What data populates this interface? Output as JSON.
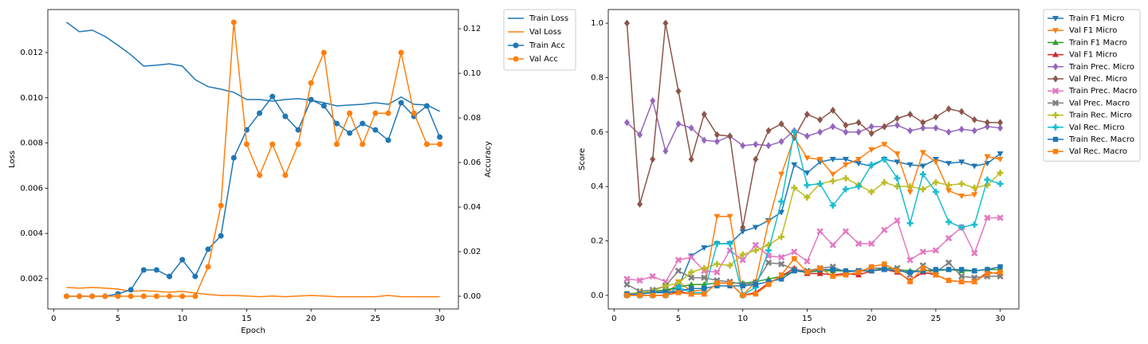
{
  "chart_data": [
    {
      "type": "line",
      "xlabel": "Epoch",
      "ylabel": "Loss",
      "y2label": "Accuracy",
      "legend": "outside",
      "x": [
        1,
        2,
        3,
        4,
        5,
        6,
        7,
        8,
        9,
        10,
        11,
        12,
        13,
        14,
        15,
        16,
        17,
        18,
        19,
        20,
        21,
        22,
        23,
        24,
        25,
        26,
        27,
        28,
        29,
        30
      ],
      "xlim": [
        -0.45,
        31.45
      ],
      "xticks": [
        0,
        5,
        10,
        15,
        20,
        25,
        30
      ],
      "ylim": [
        0.00066,
        0.0139
      ],
      "yticks": [
        0.002,
        0.004,
        0.006,
        0.008,
        {
          "value": 0.01,
          "label": "0.010"
        },
        {
          "value": 0.012,
          "label": "0.012"
        }
      ],
      "y2lim": [
        -0.0057,
        0.1286
      ],
      "y2ticks": [
        {
          "value": 0,
          "label": "0.00"
        },
        {
          "value": 0.02,
          "label": "0.02"
        },
        {
          "value": 0.04,
          "label": "0.04"
        },
        {
          "value": 0.06,
          "label": "0.06"
        },
        {
          "value": 0.08,
          "label": "0.08"
        },
        {
          "value": 0.1,
          "label": "0.10"
        },
        {
          "value": 0.12,
          "label": "0.12"
        }
      ],
      "series": [
        {
          "name": "Train Loss",
          "color": "#1f77b4",
          "marker": "none",
          "values": [
            0.01334,
            0.01292,
            0.01299,
            0.01271,
            0.01232,
            0.0119,
            0.0114,
            0.01144,
            0.0115,
            0.0114,
            0.0108,
            0.01049,
            0.01038,
            0.01024,
            0.00992,
            0.00992,
            0.00985,
            0.00992,
            0.00996,
            0.00989,
            0.00978,
            0.00964,
            0.00968,
            0.00971,
            0.00978,
            0.00971,
            0.01003,
            0.00971,
            0.00968,
            0.0094
          ]
        },
        {
          "name": "Val Loss",
          "color": "#ff7f0e",
          "marker": "none",
          "values": [
            0.00161,
            0.00158,
            0.00161,
            0.00158,
            0.00154,
            0.00144,
            0.00147,
            0.00144,
            0.0014,
            0.00144,
            0.00137,
            0.0013,
            0.00126,
            0.00126,
            0.00123,
            0.0012,
            0.00123,
            0.0012,
            0.00123,
            0.00126,
            0.00123,
            0.0012,
            0.0012,
            0.0012,
            0.0012,
            0.00126,
            0.0012,
            0.0012,
            0.0012,
            0.0012
          ]
        },
        {
          "name": "Train Acc",
          "color": "#1f77b4",
          "marker": "circle",
          "axis": "y2",
          "values": [
            0,
            0,
            0,
            0,
            0.0011,
            0.0029,
            0.0118,
            0.0118,
            0.0089,
            0.0164,
            0.0089,
            0.0211,
            0.0271,
            0.0621,
            0.0746,
            0.0821,
            0.0896,
            0.0807,
            0.0746,
            0.0882,
            0.0854,
            0.0775,
            0.0732,
            0.0775,
            0.0746,
            0.07,
            0.0868,
            0.0807,
            0.0854,
            0.0714
          ]
        },
        {
          "name": "Val Acc",
          "color": "#ff7f0e",
          "marker": "circle",
          "axis": "y2",
          "values": [
            0,
            0,
            0,
            0,
            0,
            0,
            0,
            0,
            0,
            0,
            0,
            0.0132,
            0.0407,
            0.1229,
            0.0682,
            0.0543,
            0.0682,
            0.0543,
            0.0682,
            0.0957,
            0.1093,
            0.0682,
            0.0821,
            0.0682,
            0.0821,
            0.0821,
            0.1093,
            0.0821,
            0.0682,
            0.0682
          ]
        }
      ]
    },
    {
      "type": "line",
      "xlabel": "Epoch",
      "ylabel": "Score",
      "legend": "outside",
      "x": [
        1,
        2,
        3,
        4,
        5,
        6,
        7,
        8,
        9,
        10,
        11,
        12,
        13,
        14,
        15,
        16,
        17,
        18,
        19,
        20,
        21,
        22,
        23,
        24,
        25,
        26,
        27,
        28,
        29,
        30
      ],
      "xlim": [
        -0.45,
        31.45
      ],
      "xticks": [
        0,
        5,
        10,
        15,
        20,
        25,
        30
      ],
      "ylim": [
        -0.05,
        1.05
      ],
      "yticks": [
        {
          "value": 0,
          "label": "0.0"
        },
        {
          "value": 0.2,
          "label": "0.2"
        },
        {
          "value": 0.4,
          "label": "0.4"
        },
        {
          "value": 0.6,
          "label": "0.6"
        },
        {
          "value": 0.8,
          "label": "0.8"
        },
        {
          "value": 1,
          "label": "1.0"
        }
      ],
      "series": [
        {
          "name": "Train F1 Micro",
          "color": "#1f77b4",
          "marker": "tri-down",
          "values": [
            0.005,
            0.01,
            0.01,
            0.015,
            0.03,
            0.145,
            0.175,
            0.19,
            0.19,
            0.235,
            0.25,
            0.275,
            0.305,
            0.48,
            0.45,
            0.49,
            0.5,
            0.5,
            0.485,
            0.475,
            0.5,
            0.49,
            0.48,
            0.475,
            0.5,
            0.485,
            0.49,
            0.475,
            0.485,
            0.52
          ]
        },
        {
          "name": "Val F1 Micro",
          "color": "#ff7f0e",
          "marker": "tri-down",
          "values": [
            0,
            0,
            0,
            0,
            0.05,
            0.015,
            0.02,
            0.29,
            0.29,
            0,
            0.05,
            0.27,
            0.445,
            0.58,
            0.505,
            0.5,
            0.445,
            0.48,
            0.5,
            0.535,
            0.555,
            0.52,
            0.38,
            0.525,
            0.49,
            0.385,
            0.365,
            0.37,
            0.51,
            0.5
          ]
        },
        {
          "name": "Train F1 Macro",
          "color": "#2ca02c",
          "marker": "tri-up",
          "values": [
            0.005,
            0.01,
            0.015,
            0.02,
            0.03,
            0.04,
            0.04,
            0.045,
            0.045,
            0.045,
            0.05,
            0.06,
            0.07,
            0.09,
            0.085,
            0.09,
            0.09,
            0.09,
            0.09,
            0.09,
            0.1,
            0.095,
            0.09,
            0.09,
            0.09,
            0.095,
            0.09,
            0.09,
            0.095,
            0.095
          ]
        },
        {
          "name": "Val F1 Micro",
          "color": "#d62728",
          "marker": "tri-up",
          "values": [
            0,
            0,
            0,
            0,
            0.015,
            0.005,
            0.005,
            0.045,
            0.045,
            0,
            0.01,
            0.045,
            0.07,
            0.1,
            0.08,
            0.08,
            0.075,
            0.08,
            0.075,
            0.09,
            0.095,
            0.085,
            0.055,
            0.085,
            0.075,
            0.055,
            0.05,
            0.05,
            0.085,
            0.08
          ]
        },
        {
          "name": "Train Prec. Micro",
          "color": "#9467bd",
          "marker": "diamond",
          "values": [
            0.635,
            0.59,
            0.715,
            0.53,
            0.63,
            0.615,
            0.57,
            0.565,
            0.585,
            0.55,
            0.555,
            0.55,
            0.565,
            0.605,
            0.585,
            0.6,
            0.62,
            0.6,
            0.6,
            0.62,
            0.62,
            0.625,
            0.605,
            0.615,
            0.615,
            0.6,
            0.61,
            0.605,
            0.62,
            0.615
          ]
        },
        {
          "name": "Val Prec. Micro",
          "color": "#8c564b",
          "marker": "diamond",
          "values": [
            1,
            0.335,
            0.5,
            1,
            0.75,
            0.5,
            0.665,
            0.59,
            0.585,
            0.25,
            0.5,
            0.605,
            0.63,
            0.58,
            0.665,
            0.645,
            0.68,
            0.625,
            0.635,
            0.595,
            0.62,
            0.65,
            0.665,
            0.635,
            0.655,
            0.685,
            0.675,
            0.645,
            0.635,
            0.635
          ]
        },
        {
          "name": "Train Prec. Macro",
          "color": "#e377c2",
          "marker": "x",
          "values": [
            0.06,
            0.055,
            0.07,
            0.05,
            0.13,
            0.14,
            0.09,
            0.085,
            0.165,
            0.13,
            0.185,
            0.145,
            0.14,
            0.16,
            0.125,
            0.235,
            0.185,
            0.235,
            0.19,
            0.19,
            0.24,
            0.275,
            0.13,
            0.16,
            0.165,
            0.21,
            0.25,
            0.155,
            0.285,
            0.285
          ]
        },
        {
          "name": "Val Prec. Macro",
          "color": "#7f7f7f",
          "marker": "x",
          "values": [
            0.04,
            0.015,
            0.02,
            0.035,
            0.09,
            0.065,
            0.065,
            0.055,
            0.05,
            0.04,
            0.045,
            0.12,
            0.115,
            0.095,
            0.09,
            0.1,
            0.105,
            0.085,
            0.09,
            0.1,
            0.1,
            0.1,
            0.075,
            0.11,
            0.085,
            0.12,
            0.07,
            0.065,
            0.07,
            0.07
          ]
        },
        {
          "name": "Train Rec. Micro",
          "color": "#bcbd22",
          "marker": "plus",
          "values": [
            0.005,
            0.01,
            0.015,
            0.035,
            0.045,
            0.085,
            0.1,
            0.115,
            0.11,
            0.15,
            0.165,
            0.185,
            0.215,
            0.395,
            0.36,
            0.41,
            0.42,
            0.43,
            0.405,
            0.38,
            0.415,
            0.4,
            0.4,
            0.39,
            0.415,
            0.405,
            0.41,
            0.395,
            0.405,
            0.45
          ]
        },
        {
          "name": "Val Rec. Micro",
          "color": "#17becf",
          "marker": "plus",
          "values": [
            0,
            0,
            0,
            0,
            0.03,
            0.01,
            0.01,
            0.19,
            0.19,
            0,
            0.03,
            0.165,
            0.345,
            0.6,
            0.405,
            0.41,
            0.33,
            0.39,
            0.4,
            0.48,
            0.5,
            0.43,
            0.265,
            0.445,
            0.38,
            0.27,
            0.25,
            0.26,
            0.425,
            0.41
          ]
        },
        {
          "name": "Train Rec. Macro",
          "color": "#1f77b4",
          "marker": "square",
          "values": [
            0.005,
            0.005,
            0.01,
            0.01,
            0.015,
            0.025,
            0.025,
            0.035,
            0.035,
            0.035,
            0.04,
            0.05,
            0.06,
            0.09,
            0.085,
            0.095,
            0.095,
            0.09,
            0.09,
            0.09,
            0.095,
            0.09,
            0.085,
            0.09,
            0.095,
            0.095,
            0.095,
            0.09,
            0.095,
            0.105
          ]
        },
        {
          "name": "Val Rec. Macro",
          "color": "#ff7f0e",
          "marker": "square",
          "values": [
            0,
            0,
            0,
            0,
            0.01,
            0.005,
            0.005,
            0.045,
            0.045,
            0,
            0.005,
            0.04,
            0.075,
            0.135,
            0.085,
            0.1,
            0.07,
            0.075,
            0.085,
            0.105,
            0.115,
            0.09,
            0.05,
            0.1,
            0.075,
            0.055,
            0.05,
            0.05,
            0.08,
            0.085
          ]
        }
      ]
    }
  ]
}
